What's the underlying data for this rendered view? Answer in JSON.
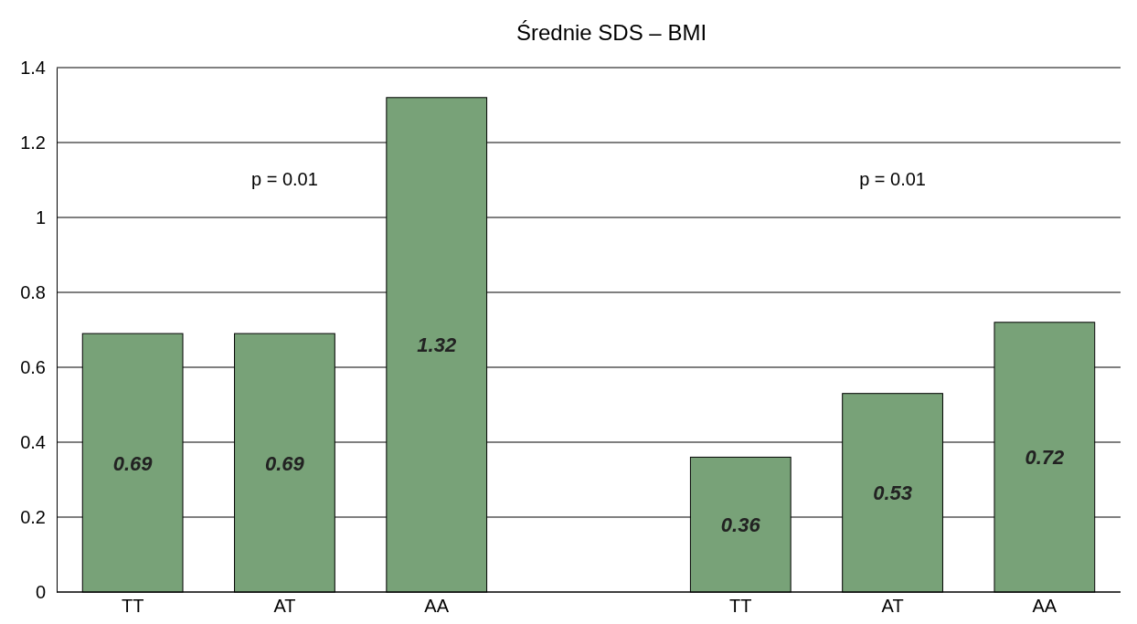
{
  "chart_data": {
    "type": "bar",
    "title": "Średnie SDS – BMI",
    "categories": [
      "TT",
      "AT",
      "AA",
      null,
      "TT",
      "AT",
      "AA"
    ],
    "values": [
      0.69,
      0.69,
      1.32,
      null,
      0.36,
      0.53,
      0.72
    ],
    "color": "#78a278",
    "ylim": [
      0,
      1.4
    ],
    "yticks": [
      0,
      0.2,
      0.4,
      0.6,
      0.8,
      1,
      1.2,
      1.4
    ],
    "grid": "y",
    "data_labels": true,
    "annotations": [
      "p = 0.01",
      "p = 0.01"
    ]
  }
}
